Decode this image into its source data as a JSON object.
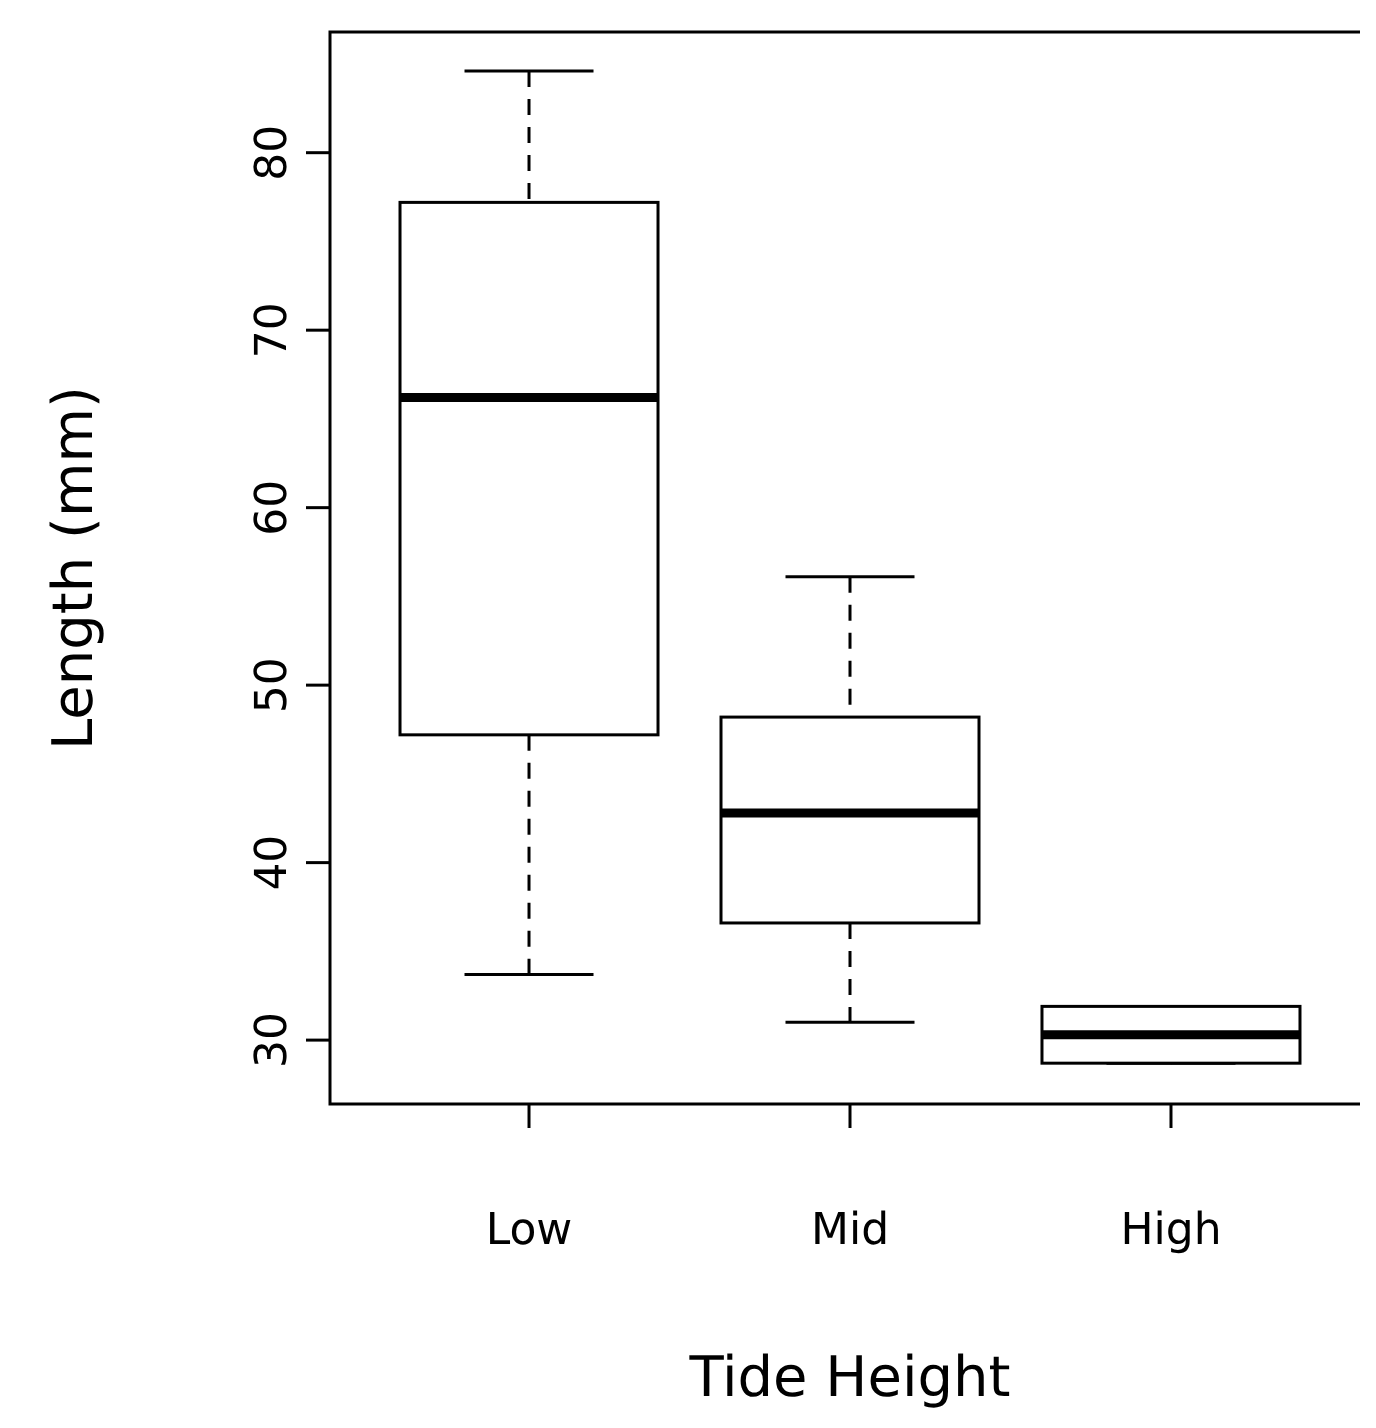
{
  "chart_data": {
    "type": "box",
    "xlabel": "Tide Height",
    "ylabel": "Length (mm)",
    "categories": [
      "Low",
      "Mid",
      "High"
    ],
    "boxes": [
      {
        "low": 33.7,
        "q1": 47.2,
        "median": 66.2,
        "q3": 77.2,
        "high": 84.6
      },
      {
        "low": 31.0,
        "q1": 36.6,
        "median": 42.8,
        "q3": 48.2,
        "high": 56.1
      },
      {
        "low": 28.7,
        "q1": 28.7,
        "median": 30.3,
        "q3": 31.9,
        "high": 31.9
      }
    ],
    "ylim": [
      26.4,
      86.8
    ],
    "yticks": [
      30,
      40,
      50,
      60,
      70,
      80
    ]
  }
}
